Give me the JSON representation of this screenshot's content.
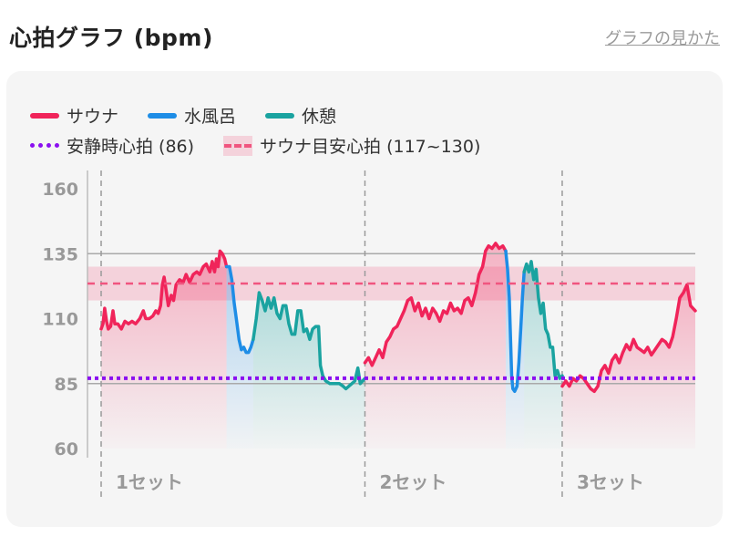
{
  "header": {
    "title": "心拍グラフ (bpm)",
    "help_link": "グラフの見かた"
  },
  "legend": {
    "sauna": "サウナ",
    "cold_bath": "水風呂",
    "rest": "休憩",
    "resting_hr": "安静時心拍 (86)",
    "sauna_target": "サウナ目安心拍 (117~130)"
  },
  "colors": {
    "sauna": "#f0245a",
    "cold_bath": "#1e8de6",
    "rest": "#1aa3a0",
    "resting_hr": "#8b10f0",
    "target_band": "#f0557f"
  },
  "chart_data": {
    "type": "line",
    "ylim": [
      60,
      160
    ],
    "yticks": [
      160,
      135,
      110,
      85,
      60
    ],
    "xlim": [
      0,
      100
    ],
    "resting_hr": 86,
    "target_range": [
      117,
      130
    ],
    "set_labels": [
      "1セット",
      "2セット",
      "3セット"
    ],
    "set_boundaries": [
      0,
      44.4,
      77.6
    ],
    "grid": "horizontal at 135 and 85; dashed vertical at set starts",
    "series": [
      {
        "name": "サウナ",
        "segments": [
          [
            [
              0,
              106
            ],
            [
              0.3,
              108
            ],
            [
              0.6,
              114
            ],
            [
              0.9,
              109
            ],
            [
              1.2,
              106
            ],
            [
              1.6,
              107
            ],
            [
              2.0,
              113
            ],
            [
              2.3,
              108
            ],
            [
              2.8,
              108
            ],
            [
              3.4,
              106
            ],
            [
              4.0,
              109
            ],
            [
              4.6,
              108
            ],
            [
              5.2,
              109
            ],
            [
              5.8,
              108
            ],
            [
              6.5,
              110
            ],
            [
              7.1,
              113
            ],
            [
              7.5,
              110
            ],
            [
              8.1,
              110
            ],
            [
              8.7,
              111
            ],
            [
              9.2,
              113
            ],
            [
              9.6,
              112
            ],
            [
              10.0,
              115
            ],
            [
              10.3,
              123
            ],
            [
              10.6,
              126
            ],
            [
              11.0,
              120
            ],
            [
              11.3,
              115
            ],
            [
              11.8,
              119
            ],
            [
              12.2,
              117
            ],
            [
              12.6,
              123
            ],
            [
              13.2,
              125
            ],
            [
              13.8,
              124
            ],
            [
              14.3,
              127
            ],
            [
              14.9,
              124
            ],
            [
              15.5,
              127
            ],
            [
              16.1,
              128
            ],
            [
              16.6,
              127
            ],
            [
              17.2,
              130
            ],
            [
              17.7,
              131
            ],
            [
              18.3,
              128
            ],
            [
              18.7,
              132
            ],
            [
              19.1,
              128
            ],
            [
              19.4,
              133
            ],
            [
              19.7,
              130
            ],
            [
              20.0,
              136
            ],
            [
              20.4,
              135
            ],
            [
              20.8,
              133
            ],
            [
              21.1,
              130
            ]
          ],
          [
            [
              44.4,
              93
            ],
            [
              45.0,
              95
            ],
            [
              45.6,
              92
            ],
            [
              46.2,
              95
            ],
            [
              46.8,
              98
            ],
            [
              47.4,
              95
            ],
            [
              48.0,
              101
            ],
            [
              48.6,
              103
            ],
            [
              49.2,
              106
            ],
            [
              49.8,
              107
            ],
            [
              50.4,
              110
            ],
            [
              51.0,
              113
            ],
            [
              51.6,
              117
            ],
            [
              52.2,
              118
            ],
            [
              52.8,
              113
            ],
            [
              53.4,
              116
            ],
            [
              54.0,
              111
            ],
            [
              54.6,
              114
            ],
            [
              55.2,
              110
            ],
            [
              55.8,
              114
            ],
            [
              56.4,
              112
            ],
            [
              57.0,
              109
            ],
            [
              57.6,
              113
            ],
            [
              58.2,
              112
            ],
            [
              58.8,
              116
            ],
            [
              59.4,
              113
            ],
            [
              60.0,
              114
            ],
            [
              60.6,
              112
            ],
            [
              61.2,
              117
            ],
            [
              61.8,
              118
            ],
            [
              62.4,
              115
            ],
            [
              63.0,
              120
            ],
            [
              63.6,
              127
            ],
            [
              64.2,
              130
            ],
            [
              64.7,
              136
            ],
            [
              65.2,
              138
            ],
            [
              65.8,
              137
            ],
            [
              66.4,
              139
            ],
            [
              67.0,
              137
            ],
            [
              67.6,
              138
            ],
            [
              68.1,
              136
            ]
          ],
          [
            [
              77.6,
              84
            ],
            [
              78.2,
              86
            ],
            [
              78.8,
              84
            ],
            [
              79.4,
              87
            ],
            [
              80.0,
              86
            ],
            [
              80.6,
              88
            ],
            [
              81.2,
              87
            ],
            [
              81.8,
              85
            ],
            [
              82.4,
              83
            ],
            [
              83.0,
              82
            ],
            [
              83.6,
              84
            ],
            [
              84.2,
              90
            ],
            [
              84.8,
              92
            ],
            [
              85.4,
              89
            ],
            [
              86.0,
              94
            ],
            [
              86.6,
              96
            ],
            [
              87.2,
              93
            ],
            [
              87.8,
              97
            ],
            [
              88.4,
              100
            ],
            [
              89.0,
              98
            ],
            [
              89.6,
              102
            ],
            [
              90.2,
              99
            ],
            [
              90.8,
              98
            ],
            [
              91.4,
              97
            ],
            [
              92.0,
              99
            ],
            [
              92.6,
              96
            ],
            [
              93.2,
              98
            ],
            [
              93.8,
              100
            ],
            [
              94.4,
              102
            ],
            [
              95.0,
              101
            ],
            [
              95.6,
              99
            ],
            [
              96.2,
              103
            ],
            [
              96.8,
              110
            ],
            [
              97.4,
              118
            ],
            [
              98.0,
              120
            ],
            [
              98.6,
              123
            ],
            [
              99.2,
              115
            ],
            [
              100.0,
              113
            ]
          ]
        ]
      },
      {
        "name": "水風呂",
        "segments": [
          [
            [
              21.1,
              130
            ],
            [
              21.6,
              130
            ],
            [
              22.0,
              125
            ],
            [
              22.4,
              116
            ],
            [
              22.8,
              109
            ],
            [
              23.2,
              102
            ],
            [
              23.6,
              98
            ],
            [
              24.0,
              99
            ],
            [
              24.4,
              97
            ],
            [
              24.8,
              97
            ],
            [
              25.2,
              99
            ],
            [
              25.6,
              102
            ]
          ],
          [
            [
              68.1,
              136
            ],
            [
              68.4,
              129
            ],
            [
              68.7,
              118
            ],
            [
              68.9,
              103
            ],
            [
              69.1,
              88
            ],
            [
              69.3,
              83
            ],
            [
              69.6,
              82
            ],
            [
              70.0,
              84
            ],
            [
              70.3,
              93
            ],
            [
              70.6,
              105
            ],
            [
              70.9,
              118
            ],
            [
              71.2,
              128
            ]
          ]
        ]
      },
      {
        "name": "休憩",
        "segments": [
          [
            [
              25.6,
              102
            ],
            [
              26.1,
              110
            ],
            [
              26.6,
              120
            ],
            [
              27.1,
              117
            ],
            [
              27.6,
              113
            ],
            [
              28.1,
              118
            ],
            [
              28.6,
              114
            ],
            [
              29.1,
              118
            ],
            [
              29.6,
              112
            ],
            [
              30.1,
              110
            ],
            [
              30.6,
              115
            ],
            [
              31.1,
              115
            ],
            [
              31.6,
              108
            ],
            [
              32.1,
              104
            ],
            [
              32.6,
              104
            ],
            [
              33.1,
              113
            ],
            [
              33.6,
              113
            ],
            [
              34.1,
              105
            ],
            [
              34.6,
              106
            ],
            [
              35.1,
              102
            ],
            [
              35.6,
              106
            ],
            [
              36.1,
              107
            ],
            [
              36.6,
              107
            ],
            [
              36.9,
              92
            ],
            [
              37.3,
              88
            ],
            [
              37.8,
              86
            ],
            [
              38.5,
              85
            ],
            [
              39.3,
              85
            ],
            [
              40.1,
              85
            ],
            [
              40.7,
              84
            ],
            [
              41.2,
              83
            ],
            [
              41.7,
              84
            ],
            [
              42.2,
              85
            ],
            [
              42.7,
              86
            ],
            [
              43.2,
              91
            ],
            [
              43.6,
              85
            ],
            [
              44.0,
              86
            ],
            [
              44.4,
              87
            ]
          ],
          [
            [
              71.2,
              128
            ],
            [
              71.6,
              131
            ],
            [
              72.0,
              128
            ],
            [
              72.4,
              132
            ],
            [
              72.8,
              125
            ],
            [
              73.2,
              129
            ],
            [
              73.6,
              118
            ],
            [
              74.0,
              112
            ],
            [
              74.4,
              116
            ],
            [
              74.8,
              106
            ],
            [
              75.2,
              104
            ],
            [
              75.6,
              99
            ],
            [
              76.0,
              99
            ],
            [
              76.4,
              88
            ],
            [
              76.8,
              90
            ],
            [
              77.2,
              87
            ],
            [
              77.6,
              88
            ]
          ]
        ]
      }
    ]
  }
}
